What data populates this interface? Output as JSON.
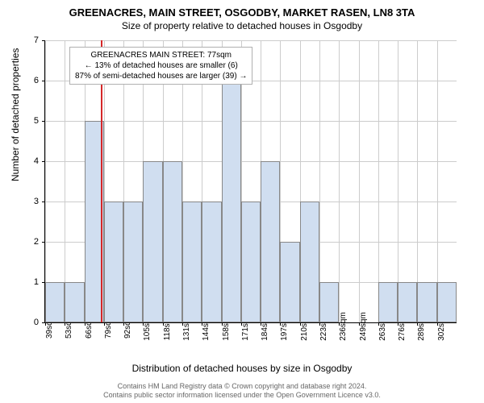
{
  "title": "GREENACRES, MAIN STREET, OSGODBY, MARKET RASEN, LN8 3TA",
  "subtitle": "Size of property relative to detached houses in Osgodby",
  "ylabel": "Number of detached properties",
  "xlabel": "Distribution of detached houses by size in Osgodby",
  "chart": {
    "type": "bar",
    "ylim": [
      0,
      7
    ],
    "yticks": [
      0,
      1,
      2,
      3,
      4,
      5,
      6,
      7
    ],
    "bar_color": "#d0def0",
    "bar_border": "#888888",
    "grid_color": "#cccccc",
    "marker_color": "#d62728",
    "marker_x_sqm": 77,
    "x_start": 39,
    "x_step": 13,
    "x_unit": "sqm",
    "bars": [
      {
        "x": 39,
        "y": 1
      },
      {
        "x": 53,
        "y": 1
      },
      {
        "x": 66,
        "y": 5
      },
      {
        "x": 79,
        "y": 3
      },
      {
        "x": 92,
        "y": 3
      },
      {
        "x": 105,
        "y": 4
      },
      {
        "x": 118,
        "y": 4
      },
      {
        "x": 131,
        "y": 3
      },
      {
        "x": 144,
        "y": 3
      },
      {
        "x": 158,
        "y": 6
      },
      {
        "x": 171,
        "y": 3
      },
      {
        "x": 184,
        "y": 4
      },
      {
        "x": 197,
        "y": 2
      },
      {
        "x": 210,
        "y": 3
      },
      {
        "x": 223,
        "y": 1
      },
      {
        "x": 263,
        "y": 1
      },
      {
        "x": 276,
        "y": 1
      },
      {
        "x": 289,
        "y": 1
      },
      {
        "x": 302,
        "y": 1
      }
    ],
    "xticks": [
      39,
      53,
      66,
      79,
      92,
      105,
      118,
      131,
      144,
      158,
      171,
      184,
      197,
      210,
      223,
      236,
      249,
      263,
      276,
      289,
      302
    ]
  },
  "annotation": {
    "line1": "GREENACRES MAIN STREET: 77sqm",
    "line2": "← 13% of detached houses are smaller (6)",
    "line3": "87% of semi-detached houses are larger (39) →"
  },
  "attribution": {
    "line1": "Contains HM Land Registry data © Crown copyright and database right 2024.",
    "line2": "Contains public sector information licensed under the Open Government Licence v3.0."
  }
}
